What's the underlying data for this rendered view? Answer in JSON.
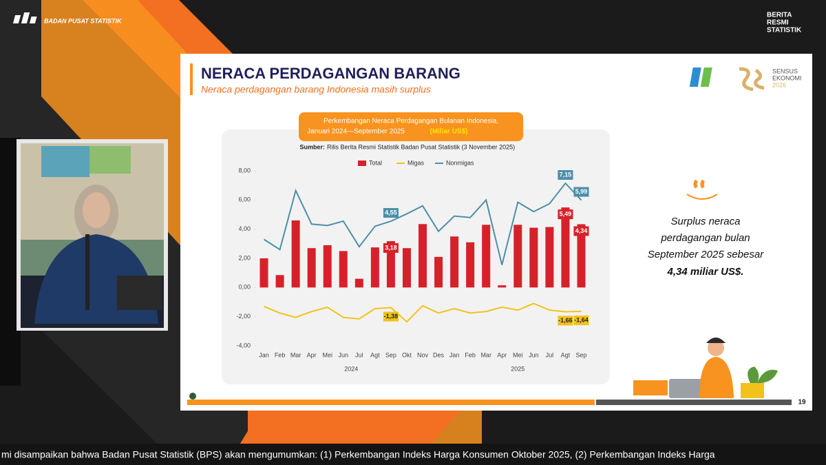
{
  "broadcast": {
    "org": "BADAN PUSAT STATISTIK",
    "badge": [
      "BERITA",
      "RESMI",
      "STATISTIK"
    ],
    "ticker": "mi disampaikan bahwa Badan Pusat Statistik (BPS) akan mengumumkan: (1) Perkembangan Indeks Harga Konsumen Oktober 2025, (2) Perkembangan Indeks Harga"
  },
  "slide": {
    "title": "NERACA PERDAGANGAN BARANG",
    "subtitle": "Neraca perdagangan barang Indonesia masih surplus",
    "logo": [
      "SENSUS",
      "EKONOMI",
      "2026"
    ],
    "page": "19",
    "note": [
      "Surplus neraca",
      "perdagangan bulan",
      "September 2025 sebesar"
    ],
    "note_highlight": "4,34 miliar US$."
  },
  "chart_data": {
    "type": "bar",
    "title": [
      "Perkembangan Neraca Perdagangan Bulanan Indonesia,",
      "Januari 2024—September 2025"
    ],
    "unit": "(Miliar US$)",
    "source_label": "Sumber:",
    "source": "Rilis Berita Resmi Statistik Badan Pusat Statistik (3 November 2025)",
    "categories": [
      "Jan",
      "Feb",
      "Mar",
      "Apr",
      "Mei",
      "Jun",
      "Jul",
      "Agt",
      "Sep",
      "Okt",
      "Nov",
      "Des",
      "Jan",
      "Feb",
      "Mar",
      "Apr",
      "Mei",
      "Jun",
      "Jul",
      "Agt",
      "Sep"
    ],
    "years": [
      "2024",
      "2025"
    ],
    "ylim": [
      -4,
      8
    ],
    "yticks": [
      {
        "value": -4,
        "label": "-4,00"
      },
      {
        "value": -2,
        "label": "-2,00"
      },
      {
        "value": 0,
        "label": "0,00"
      },
      {
        "value": 2,
        "label": "2,00"
      },
      {
        "value": 4,
        "label": "4,00"
      },
      {
        "value": 6,
        "label": "6,00"
      },
      {
        "value": 8,
        "label": "8,00"
      }
    ],
    "legend": "top",
    "series": [
      {
        "name": "Total",
        "type": "bar",
        "color": "#d7212a",
        "values": [
          2.0,
          0.85,
          4.6,
          2.7,
          2.9,
          2.5,
          0.6,
          2.75,
          3.18,
          2.7,
          4.35,
          2.1,
          3.5,
          3.1,
          4.3,
          0.15,
          4.3,
          4.1,
          4.15,
          5.49,
          4.34
        ],
        "value_labels": [
          null,
          null,
          null,
          null,
          null,
          null,
          null,
          null,
          "3,18",
          null,
          null,
          null,
          null,
          null,
          null,
          null,
          null,
          null,
          null,
          "5,49",
          "4,34"
        ]
      },
      {
        "name": "Migas",
        "type": "line",
        "color": "#f2c21b",
        "values": [
          -1.3,
          -1.75,
          -2.05,
          -1.65,
          -1.35,
          -2.05,
          -2.15,
          -1.45,
          -1.38,
          -2.35,
          -1.25,
          -1.75,
          -1.45,
          -1.75,
          -1.65,
          -1.35,
          -1.55,
          -1.1,
          -1.55,
          -1.66,
          -1.64
        ],
        "value_labels": [
          null,
          null,
          null,
          null,
          null,
          null,
          null,
          null,
          "-1,38",
          null,
          null,
          null,
          null,
          null,
          null,
          null,
          null,
          null,
          null,
          "-1,66",
          "-1,64"
        ]
      },
      {
        "name": "Nonmigas",
        "type": "line",
        "color": "#4b8fa8",
        "values": [
          3.3,
          2.6,
          6.65,
          4.35,
          4.25,
          4.55,
          2.8,
          4.2,
          4.55,
          5.05,
          5.6,
          3.85,
          4.9,
          4.8,
          6.0,
          1.55,
          5.85,
          5.2,
          5.75,
          7.15,
          5.99
        ],
        "value_labels": [
          null,
          null,
          null,
          null,
          null,
          null,
          null,
          null,
          "4,55",
          null,
          null,
          null,
          null,
          null,
          null,
          null,
          null,
          null,
          null,
          "7,15",
          "5,99"
        ]
      }
    ]
  }
}
